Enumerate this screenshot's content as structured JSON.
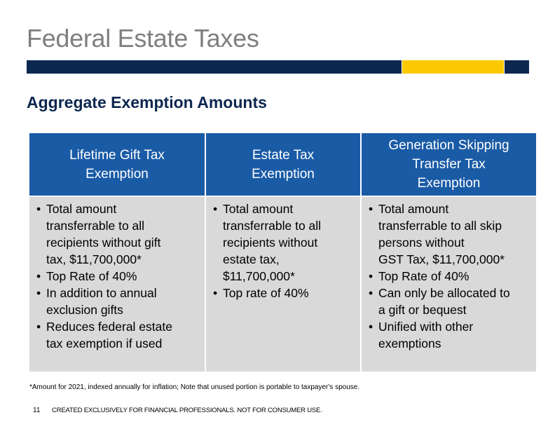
{
  "slide": {
    "title": "Federal Estate Taxes",
    "subtitle": "Aggregate Exemption Amounts"
  },
  "colors": {
    "navy": "#0c2750",
    "gold": "#fcc900",
    "header_blue": "#1a5ba6",
    "body_gray": "#d9d9d9",
    "title_gray": "#7f7f7f"
  },
  "columns": [
    {
      "header": "Lifetime Gift Tax\nExemption",
      "bullets": [
        "Total amount\ntransferrable to all\nrecipients without gift\ntax, $11,700,000*",
        "Top Rate of 40%",
        "In addition to annual\nexclusion gifts",
        "Reduces federal estate\ntax exemption if used"
      ]
    },
    {
      "header": "Estate Tax\nExemption",
      "bullets": [
        "Total amount\ntransferrable to all\nrecipients without\nestate tax,\n$11,700,000*",
        "Top rate of 40%"
      ]
    },
    {
      "header": "Generation Skipping\nTransfer Tax\nExemption",
      "bullets": [
        "Total amount\ntransferrable to all skip\npersons without\nGST Tax, $11,700,000*",
        "Top Rate of 40%",
        "Can only be allocated to\na gift or bequest",
        "Unified with other\nexemptions"
      ]
    }
  ],
  "footnote": "*Amount for 2021, indexed annually for inflation; Note that unused portion is portable to taxpayer's spouse.",
  "footer": {
    "page_number": "11",
    "disclaimer": "CREATED EXCLUSIVELY FOR FINANCIAL PROFESSIONALS. NOT FOR CONSUMER USE."
  }
}
